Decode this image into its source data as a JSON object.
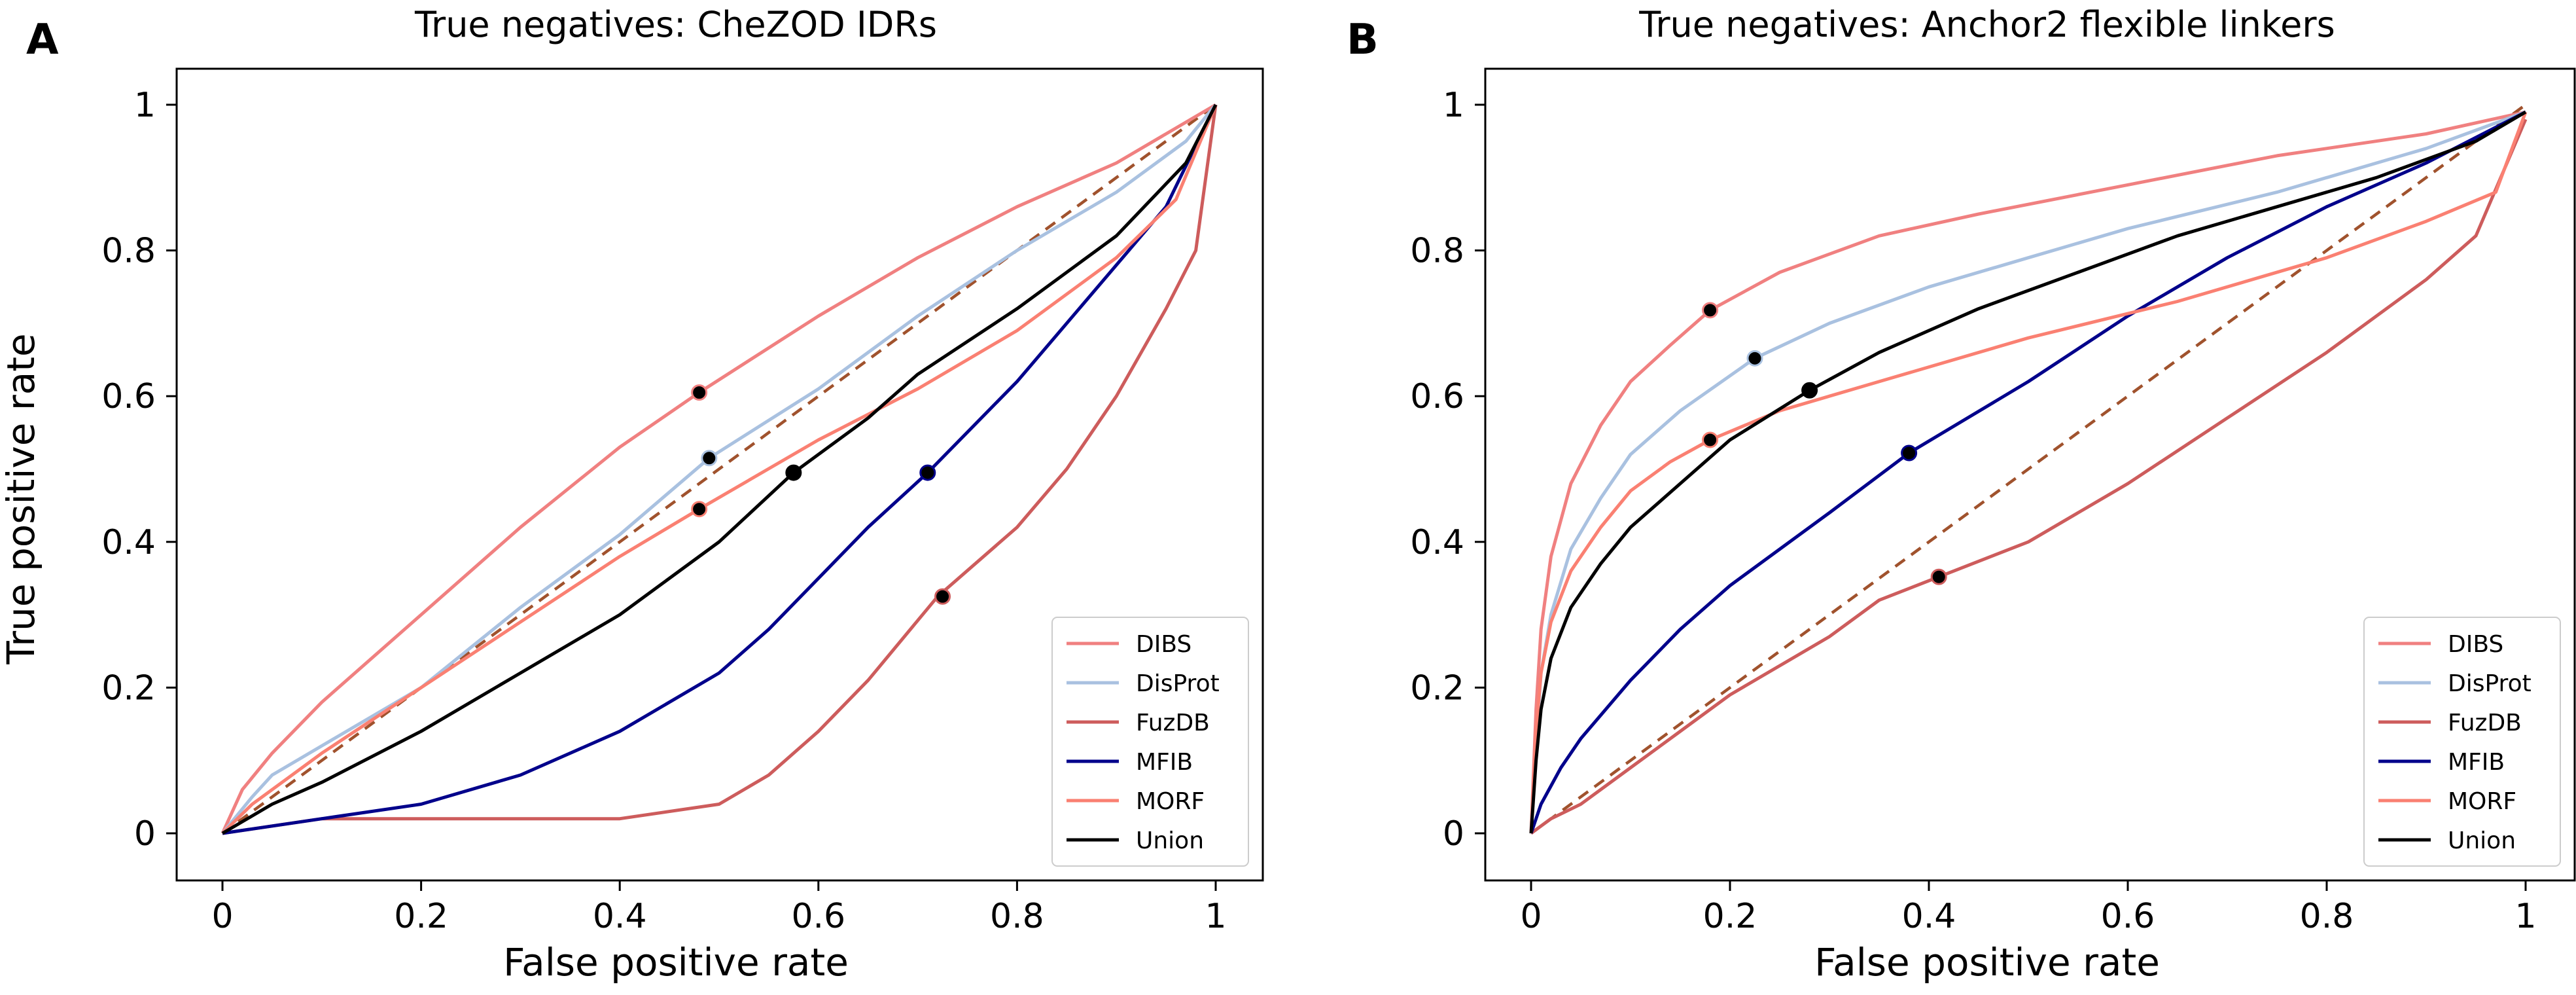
{
  "figure": {
    "panels": [
      {
        "letter": "A",
        "title": "True negatives:  CheZOD IDRs"
      },
      {
        "letter": "B",
        "title": "True negatives:  Anchor2 flexible linkers"
      }
    ],
    "series_styles": [
      {
        "name": "DIBS",
        "color": "#F08080"
      },
      {
        "name": "DisProt",
        "color": "#A9C1E0"
      },
      {
        "name": "FuzDB",
        "color": "#CD5C5C"
      },
      {
        "name": "MFIB",
        "color": "#00008B"
      },
      {
        "name": "MORF",
        "color": "#FA8072"
      },
      {
        "name": "Union",
        "color": "#000000"
      }
    ],
    "diagonal_color": "#A0522D"
  },
  "chart_data": [
    {
      "type": "line",
      "title": "True negatives:  CheZOD IDRs",
      "xlabel": "False positive rate",
      "ylabel": "True positive rate",
      "xlim": [
        0,
        1
      ],
      "ylim": [
        0,
        1
      ],
      "xticks": [
        "0",
        "0.2",
        "0.4",
        "0.6",
        "0.8",
        "1"
      ],
      "yticks": [
        "0",
        "0.2",
        "0.4",
        "0.6",
        "0.8",
        "1"
      ],
      "legend_position": "bottom-right",
      "reference_line": "diagonal dashed",
      "series": [
        {
          "name": "DIBS",
          "x": [
            0,
            0.02,
            0.05,
            0.1,
            0.2,
            0.3,
            0.4,
            0.48,
            0.6,
            0.7,
            0.8,
            0.9,
            0.95,
            1.0
          ],
          "y": [
            0,
            0.06,
            0.11,
            0.18,
            0.3,
            0.42,
            0.53,
            0.605,
            0.71,
            0.79,
            0.86,
            0.92,
            0.96,
            1.0
          ],
          "marker": {
            "x": 0.48,
            "y": 0.605
          }
        },
        {
          "name": "DisProt",
          "x": [
            0,
            0.03,
            0.05,
            0.1,
            0.2,
            0.3,
            0.4,
            0.49,
            0.6,
            0.7,
            0.8,
            0.9,
            0.97,
            1.0
          ],
          "y": [
            0,
            0.05,
            0.08,
            0.12,
            0.2,
            0.31,
            0.41,
            0.515,
            0.61,
            0.71,
            0.8,
            0.88,
            0.95,
            1.0
          ],
          "marker": {
            "x": 0.49,
            "y": 0.515
          }
        },
        {
          "name": "FuzDB",
          "x": [
            0,
            0.05,
            0.1,
            0.2,
            0.3,
            0.4,
            0.5,
            0.55,
            0.6,
            0.65,
            0.72,
            0.8,
            0.85,
            0.9,
            0.95,
            0.98,
            1.0
          ],
          "y": [
            0,
            0.01,
            0.02,
            0.02,
            0.02,
            0.02,
            0.04,
            0.08,
            0.14,
            0.21,
            0.325,
            0.42,
            0.5,
            0.6,
            0.72,
            0.8,
            1.0
          ],
          "marker": {
            "x": 0.725,
            "y": 0.325
          }
        },
        {
          "name": "MFIB",
          "x": [
            0,
            0.1,
            0.2,
            0.3,
            0.4,
            0.5,
            0.55,
            0.6,
            0.65,
            0.71,
            0.8,
            0.9,
            0.95,
            1.0
          ],
          "y": [
            0,
            0.02,
            0.04,
            0.08,
            0.14,
            0.22,
            0.28,
            0.35,
            0.42,
            0.495,
            0.62,
            0.78,
            0.86,
            1.0
          ],
          "marker": {
            "x": 0.71,
            "y": 0.495
          }
        },
        {
          "name": "MORF",
          "x": [
            0,
            0.03,
            0.07,
            0.1,
            0.2,
            0.3,
            0.4,
            0.48,
            0.6,
            0.7,
            0.8,
            0.9,
            0.96,
            1.0
          ],
          "y": [
            0,
            0.04,
            0.08,
            0.11,
            0.2,
            0.29,
            0.38,
            0.445,
            0.54,
            0.61,
            0.69,
            0.79,
            0.87,
            1.0
          ],
          "marker": {
            "x": 0.48,
            "y": 0.445
          }
        },
        {
          "name": "Union",
          "x": [
            0,
            0.05,
            0.1,
            0.2,
            0.3,
            0.4,
            0.5,
            0.575,
            0.65,
            0.7,
            0.8,
            0.9,
            0.97,
            1.0
          ],
          "y": [
            0,
            0.04,
            0.07,
            0.14,
            0.22,
            0.3,
            0.4,
            0.495,
            0.57,
            0.63,
            0.72,
            0.82,
            0.92,
            1.0
          ],
          "marker": {
            "x": 0.575,
            "y": 0.495
          }
        }
      ]
    },
    {
      "type": "line",
      "title": "True negatives:  Anchor2 flexible linkers",
      "xlabel": "False positive rate",
      "ylabel": "",
      "xlim": [
        0,
        1
      ],
      "ylim": [
        0,
        1
      ],
      "xticks": [
        "0",
        "0.2",
        "0.4",
        "0.6",
        "0.8",
        "1"
      ],
      "yticks": [
        "0",
        "0.2",
        "0.4",
        "0.6",
        "0.8",
        "1"
      ],
      "legend_position": "bottom-right",
      "reference_line": "diagonal dashed",
      "series": [
        {
          "name": "DIBS",
          "x": [
            0,
            0.005,
            0.01,
            0.02,
            0.04,
            0.07,
            0.1,
            0.14,
            0.18,
            0.25,
            0.35,
            0.45,
            0.6,
            0.75,
            0.9,
            1.0
          ],
          "y": [
            0,
            0.17,
            0.28,
            0.38,
            0.48,
            0.56,
            0.62,
            0.67,
            0.718,
            0.77,
            0.82,
            0.85,
            0.89,
            0.93,
            0.96,
            0.99
          ],
          "marker": {
            "x": 0.18,
            "y": 0.718
          }
        },
        {
          "name": "DisProt",
          "x": [
            0,
            0.005,
            0.01,
            0.02,
            0.04,
            0.07,
            0.1,
            0.15,
            0.225,
            0.3,
            0.4,
            0.5,
            0.6,
            0.75,
            0.9,
            1.0
          ],
          "y": [
            0,
            0.12,
            0.22,
            0.3,
            0.39,
            0.46,
            0.52,
            0.58,
            0.652,
            0.7,
            0.75,
            0.79,
            0.83,
            0.88,
            0.94,
            0.99
          ],
          "marker": {
            "x": 0.225,
            "y": 0.652
          }
        },
        {
          "name": "FuzDB",
          "x": [
            0,
            0.02,
            0.05,
            0.1,
            0.15,
            0.2,
            0.25,
            0.3,
            0.35,
            0.41,
            0.5,
            0.6,
            0.7,
            0.8,
            0.9,
            0.95,
            1.0
          ],
          "y": [
            0,
            0.02,
            0.04,
            0.09,
            0.14,
            0.19,
            0.23,
            0.27,
            0.32,
            0.352,
            0.4,
            0.48,
            0.57,
            0.66,
            0.76,
            0.82,
            0.98
          ],
          "marker": {
            "x": 0.41,
            "y": 0.352
          }
        },
        {
          "name": "MFIB",
          "x": [
            0,
            0.01,
            0.03,
            0.05,
            0.1,
            0.15,
            0.2,
            0.3,
            0.38,
            0.5,
            0.6,
            0.7,
            0.8,
            0.9,
            1.0
          ],
          "y": [
            0,
            0.04,
            0.09,
            0.13,
            0.21,
            0.28,
            0.34,
            0.44,
            0.522,
            0.62,
            0.71,
            0.79,
            0.86,
            0.92,
            0.99
          ],
          "marker": {
            "x": 0.38,
            "y": 0.522
          }
        },
        {
          "name": "MORF",
          "x": [
            0,
            0.005,
            0.01,
            0.02,
            0.04,
            0.07,
            0.1,
            0.14,
            0.18,
            0.25,
            0.35,
            0.5,
            0.65,
            0.8,
            0.9,
            0.97,
            1.0
          ],
          "y": [
            0,
            0.14,
            0.22,
            0.29,
            0.36,
            0.42,
            0.47,
            0.51,
            0.54,
            0.58,
            0.62,
            0.68,
            0.73,
            0.79,
            0.84,
            0.88,
            0.99
          ],
          "marker": {
            "x": 0.18,
            "y": 0.54
          }
        },
        {
          "name": "Union",
          "x": [
            0,
            0.005,
            0.01,
            0.02,
            0.04,
            0.07,
            0.1,
            0.15,
            0.2,
            0.28,
            0.35,
            0.45,
            0.55,
            0.65,
            0.75,
            0.85,
            0.95,
            1.0
          ],
          "y": [
            0,
            0.1,
            0.17,
            0.24,
            0.31,
            0.37,
            0.42,
            0.48,
            0.54,
            0.608,
            0.66,
            0.72,
            0.77,
            0.82,
            0.86,
            0.9,
            0.95,
            0.99
          ],
          "marker": {
            "x": 0.28,
            "y": 0.608
          }
        }
      ]
    }
  ]
}
